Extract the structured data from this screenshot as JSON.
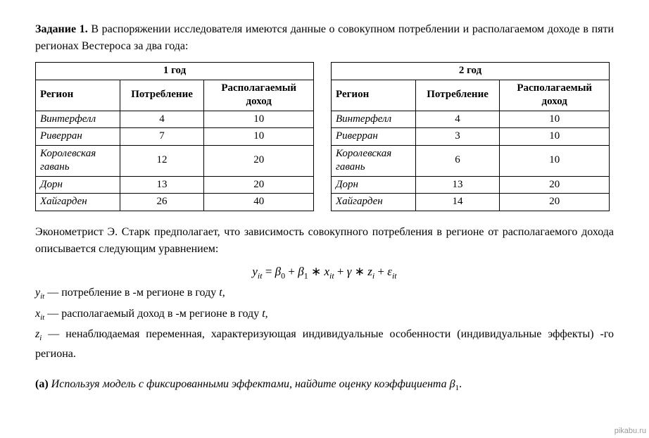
{
  "task": {
    "label": "Задание 1.",
    "intro_text": " В распоряжении исследователя имеются данные о совокупном потреблении и располагаемом доходе в пяти регионах Вестероса за два года:"
  },
  "tables": {
    "year1": {
      "title": "1 год",
      "columns": [
        "Регион",
        "Потребление",
        "Располагаемый доход"
      ],
      "rows": [
        {
          "region": "Винтерфелл",
          "consumption": "4",
          "income": "10"
        },
        {
          "region": "Риверран",
          "consumption": "7",
          "income": "10"
        },
        {
          "region": "Королевская гавань",
          "consumption": "12",
          "income": "20"
        },
        {
          "region": "Дорн",
          "consumption": "13",
          "income": "20"
        },
        {
          "region": "Хайгарден",
          "consumption": "26",
          "income": "40"
        }
      ]
    },
    "year2": {
      "title": "2 год",
      "columns": [
        "Регион",
        "Потребление",
        "Располагаемый доход"
      ],
      "rows": [
        {
          "region": "Винтерфелл",
          "consumption": "4",
          "income": "10"
        },
        {
          "region": "Риверран",
          "consumption": "3",
          "income": "10"
        },
        {
          "region": "Королевская гавань",
          "consumption": "6",
          "income": "10"
        },
        {
          "region": "Дорн",
          "consumption": "13",
          "income": "20"
        },
        {
          "region": "Хайгарден",
          "consumption": "14",
          "income": "20"
        }
      ]
    }
  },
  "model": {
    "intro": "Эконометрист Э. Старк предполагает, что зависимость совокупного потребления в регионе от располагаемого дохода описывается следующим уравнением:"
  },
  "equation": {
    "y": "y",
    "y_sub": "it",
    "eq": " = ",
    "b0": "β",
    "b0_sub": "0",
    "plus1": " + ",
    "b1": "β",
    "b1_sub": "1",
    "mul1": " ∗ ",
    "x": "x",
    "x_sub": "it",
    "plus2": " + ",
    "g": "γ",
    "mul2": " ∗ ",
    "z": "z",
    "z_sub": "i",
    "plus3": " + ",
    "eps": "ε",
    "eps_sub": "it"
  },
  "vardefs": {
    "y": {
      "sym": "y",
      "sub": "it",
      "dash": " — ",
      "text": "потребление в -м регионе в году ",
      "t": "t",
      "comma": ","
    },
    "x": {
      "sym": "x",
      "sub": "it",
      "dash": " — ",
      "text": "располагаемый доход в -м регионе в году ",
      "t": "t",
      "comma": ","
    },
    "z": {
      "sym": "z",
      "sub": "i",
      "dash": " — ",
      "text": "ненаблюдаемая переменная, характеризующая индивидуальные особенности (индивидуальные эффекты) -го региона."
    }
  },
  "part_a": {
    "label": "(а)",
    "text": " Используя модель с фиксированными эффектами, найдите оценку коэффициента ",
    "b1": "β",
    "b1_sub": "1",
    "period": "."
  },
  "watermark": "pikabu.ru"
}
